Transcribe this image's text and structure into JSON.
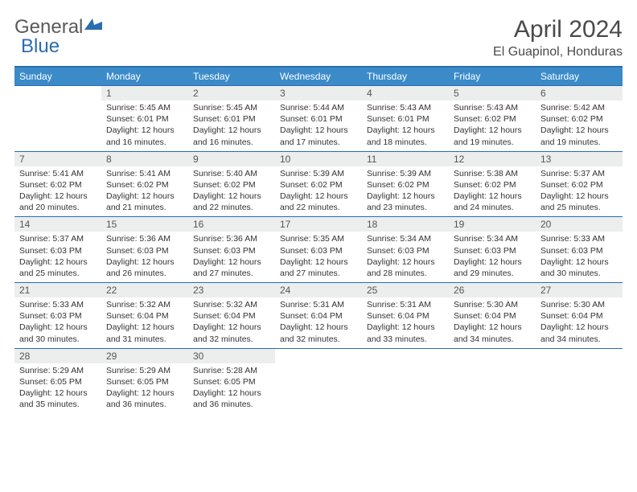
{
  "brand": {
    "part1": "General",
    "part2": "Blue"
  },
  "title": "April 2024",
  "location": "El Guapinol, Honduras",
  "colors": {
    "header_bg": "#3b8bc9",
    "header_border": "#2a6db0",
    "daynum_bg": "#eceded",
    "text": "#333333",
    "title_text": "#4a4a4a"
  },
  "weekdays": [
    "Sunday",
    "Monday",
    "Tuesday",
    "Wednesday",
    "Thursday",
    "Friday",
    "Saturday"
  ],
  "weeks": [
    [
      {
        "n": "",
        "sr": "",
        "ss": "",
        "dl": ""
      },
      {
        "n": "1",
        "sr": "Sunrise: 5:45 AM",
        "ss": "Sunset: 6:01 PM",
        "dl": "Daylight: 12 hours and 16 minutes."
      },
      {
        "n": "2",
        "sr": "Sunrise: 5:45 AM",
        "ss": "Sunset: 6:01 PM",
        "dl": "Daylight: 12 hours and 16 minutes."
      },
      {
        "n": "3",
        "sr": "Sunrise: 5:44 AM",
        "ss": "Sunset: 6:01 PM",
        "dl": "Daylight: 12 hours and 17 minutes."
      },
      {
        "n": "4",
        "sr": "Sunrise: 5:43 AM",
        "ss": "Sunset: 6:01 PM",
        "dl": "Daylight: 12 hours and 18 minutes."
      },
      {
        "n": "5",
        "sr": "Sunrise: 5:43 AM",
        "ss": "Sunset: 6:02 PM",
        "dl": "Daylight: 12 hours and 19 minutes."
      },
      {
        "n": "6",
        "sr": "Sunrise: 5:42 AM",
        "ss": "Sunset: 6:02 PM",
        "dl": "Daylight: 12 hours and 19 minutes."
      }
    ],
    [
      {
        "n": "7",
        "sr": "Sunrise: 5:41 AM",
        "ss": "Sunset: 6:02 PM",
        "dl": "Daylight: 12 hours and 20 minutes."
      },
      {
        "n": "8",
        "sr": "Sunrise: 5:41 AM",
        "ss": "Sunset: 6:02 PM",
        "dl": "Daylight: 12 hours and 21 minutes."
      },
      {
        "n": "9",
        "sr": "Sunrise: 5:40 AM",
        "ss": "Sunset: 6:02 PM",
        "dl": "Daylight: 12 hours and 22 minutes."
      },
      {
        "n": "10",
        "sr": "Sunrise: 5:39 AM",
        "ss": "Sunset: 6:02 PM",
        "dl": "Daylight: 12 hours and 22 minutes."
      },
      {
        "n": "11",
        "sr": "Sunrise: 5:39 AM",
        "ss": "Sunset: 6:02 PM",
        "dl": "Daylight: 12 hours and 23 minutes."
      },
      {
        "n": "12",
        "sr": "Sunrise: 5:38 AM",
        "ss": "Sunset: 6:02 PM",
        "dl": "Daylight: 12 hours and 24 minutes."
      },
      {
        "n": "13",
        "sr": "Sunrise: 5:37 AM",
        "ss": "Sunset: 6:02 PM",
        "dl": "Daylight: 12 hours and 25 minutes."
      }
    ],
    [
      {
        "n": "14",
        "sr": "Sunrise: 5:37 AM",
        "ss": "Sunset: 6:03 PM",
        "dl": "Daylight: 12 hours and 25 minutes."
      },
      {
        "n": "15",
        "sr": "Sunrise: 5:36 AM",
        "ss": "Sunset: 6:03 PM",
        "dl": "Daylight: 12 hours and 26 minutes."
      },
      {
        "n": "16",
        "sr": "Sunrise: 5:36 AM",
        "ss": "Sunset: 6:03 PM",
        "dl": "Daylight: 12 hours and 27 minutes."
      },
      {
        "n": "17",
        "sr": "Sunrise: 5:35 AM",
        "ss": "Sunset: 6:03 PM",
        "dl": "Daylight: 12 hours and 27 minutes."
      },
      {
        "n": "18",
        "sr": "Sunrise: 5:34 AM",
        "ss": "Sunset: 6:03 PM",
        "dl": "Daylight: 12 hours and 28 minutes."
      },
      {
        "n": "19",
        "sr": "Sunrise: 5:34 AM",
        "ss": "Sunset: 6:03 PM",
        "dl": "Daylight: 12 hours and 29 minutes."
      },
      {
        "n": "20",
        "sr": "Sunrise: 5:33 AM",
        "ss": "Sunset: 6:03 PM",
        "dl": "Daylight: 12 hours and 30 minutes."
      }
    ],
    [
      {
        "n": "21",
        "sr": "Sunrise: 5:33 AM",
        "ss": "Sunset: 6:03 PM",
        "dl": "Daylight: 12 hours and 30 minutes."
      },
      {
        "n": "22",
        "sr": "Sunrise: 5:32 AM",
        "ss": "Sunset: 6:04 PM",
        "dl": "Daylight: 12 hours and 31 minutes."
      },
      {
        "n": "23",
        "sr": "Sunrise: 5:32 AM",
        "ss": "Sunset: 6:04 PM",
        "dl": "Daylight: 12 hours and 32 minutes."
      },
      {
        "n": "24",
        "sr": "Sunrise: 5:31 AM",
        "ss": "Sunset: 6:04 PM",
        "dl": "Daylight: 12 hours and 32 minutes."
      },
      {
        "n": "25",
        "sr": "Sunrise: 5:31 AM",
        "ss": "Sunset: 6:04 PM",
        "dl": "Daylight: 12 hours and 33 minutes."
      },
      {
        "n": "26",
        "sr": "Sunrise: 5:30 AM",
        "ss": "Sunset: 6:04 PM",
        "dl": "Daylight: 12 hours and 34 minutes."
      },
      {
        "n": "27",
        "sr": "Sunrise: 5:30 AM",
        "ss": "Sunset: 6:04 PM",
        "dl": "Daylight: 12 hours and 34 minutes."
      }
    ],
    [
      {
        "n": "28",
        "sr": "Sunrise: 5:29 AM",
        "ss": "Sunset: 6:05 PM",
        "dl": "Daylight: 12 hours and 35 minutes."
      },
      {
        "n": "29",
        "sr": "Sunrise: 5:29 AM",
        "ss": "Sunset: 6:05 PM",
        "dl": "Daylight: 12 hours and 36 minutes."
      },
      {
        "n": "30",
        "sr": "Sunrise: 5:28 AM",
        "ss": "Sunset: 6:05 PM",
        "dl": "Daylight: 12 hours and 36 minutes."
      },
      {
        "n": "",
        "sr": "",
        "ss": "",
        "dl": ""
      },
      {
        "n": "",
        "sr": "",
        "ss": "",
        "dl": ""
      },
      {
        "n": "",
        "sr": "",
        "ss": "",
        "dl": ""
      },
      {
        "n": "",
        "sr": "",
        "ss": "",
        "dl": ""
      }
    ]
  ]
}
